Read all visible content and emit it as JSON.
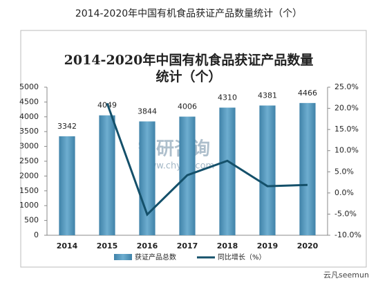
{
  "page_title": "2014-2020年中国有机食品获证产品数量统计（个）",
  "watermark": {
    "brand": "智研咨询",
    "url": "www.chyxx.com",
    "credit": "云凡seemun"
  },
  "chart_data": {
    "type": "bar_line",
    "title": [
      "2014-2020年中国有机食品获证产品数量",
      "统计（个）"
    ],
    "categories": [
      "2014",
      "2015",
      "2016",
      "2017",
      "2018",
      "2019",
      "2020"
    ],
    "series": [
      {
        "name": "获证产品总数",
        "type": "bar",
        "color": "#4f93b8",
        "values": [
          3342,
          4049,
          3844,
          4006,
          4310,
          4381,
          4466
        ]
      },
      {
        "name": "同比增长（%）",
        "type": "line",
        "axis": "y2",
        "color": "#14506a",
        "values": [
          null,
          21.2,
          -5.1,
          4.2,
          7.6,
          1.6,
          1.9
        ]
      }
    ],
    "ylim": [
      0,
      5000
    ],
    "yticks": [
      0,
      500,
      1000,
      1500,
      2000,
      2500,
      3000,
      3500,
      4000,
      4500,
      5000
    ],
    "y2lim": [
      -10,
      25
    ],
    "y2ticks": [
      {
        "value": -10,
        "label": "-10.0%"
      },
      {
        "value": -5,
        "label": "-5.0%"
      },
      {
        "value": 0,
        "label": "0.0%"
      },
      {
        "value": 5,
        "label": "5.0%"
      },
      {
        "value": 10,
        "label": "10.0%"
      },
      {
        "value": 15,
        "label": "15.0%"
      },
      {
        "value": 20,
        "label": "20.0%"
      },
      {
        "value": 25,
        "label": "25.0%"
      }
    ],
    "legend": "bottom"
  }
}
